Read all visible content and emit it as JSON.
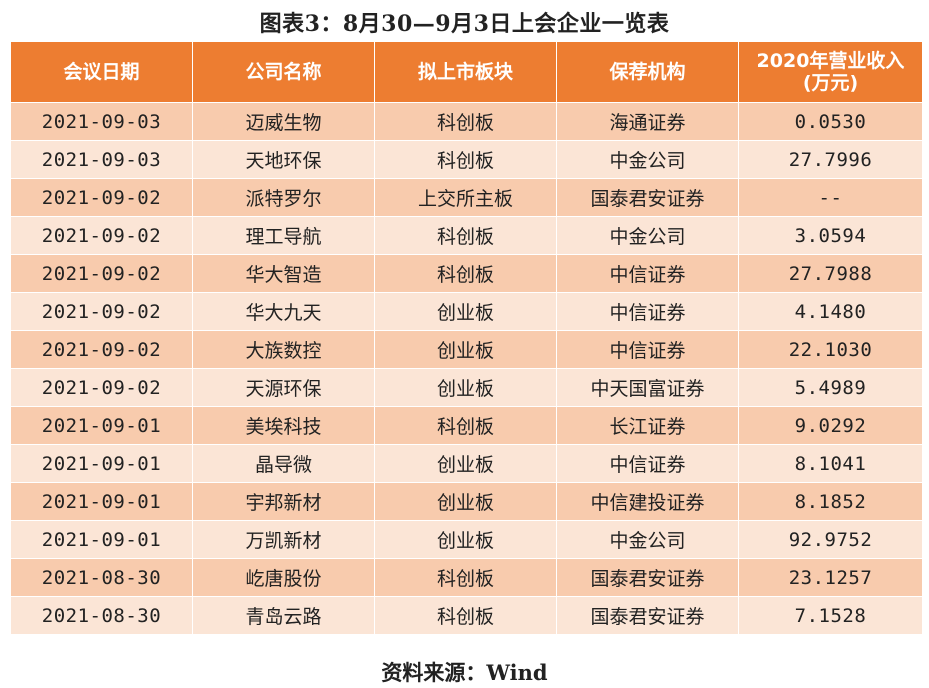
{
  "title": "图表3：8月30—9月3日上会企业一览表",
  "headers": [
    "会议日期",
    "公司名称",
    "拟上市板块",
    "保荐机构",
    "2020年营业收入",
    "(万元)"
  ],
  "rows": [
    {
      "date": "2021-09-03",
      "company": "迈威生物",
      "board": "科创板",
      "sponsor": "海通证券",
      "revenue": "0.0530"
    },
    {
      "date": "2021-09-03",
      "company": "天地环保",
      "board": "科创板",
      "sponsor": "中金公司",
      "revenue": "27.7996"
    },
    {
      "date": "2021-09-02",
      "company": "派特罗尔",
      "board": "上交所主板",
      "sponsor": "国泰君安证券",
      "revenue": "--"
    },
    {
      "date": "2021-09-02",
      "company": "理工导航",
      "board": "科创板",
      "sponsor": "中金公司",
      "revenue": "3.0594"
    },
    {
      "date": "2021-09-02",
      "company": "华大智造",
      "board": "科创板",
      "sponsor": "中信证券",
      "revenue": "27.7988"
    },
    {
      "date": "2021-09-02",
      "company": "华大九天",
      "board": "创业板",
      "sponsor": "中信证券",
      "revenue": "4.1480"
    },
    {
      "date": "2021-09-02",
      "company": "大族数控",
      "board": "创业板",
      "sponsor": "中信证券",
      "revenue": "22.1030"
    },
    {
      "date": "2021-09-02",
      "company": "天源环保",
      "board": "创业板",
      "sponsor": "中天国富证券",
      "revenue": "5.4989"
    },
    {
      "date": "2021-09-01",
      "company": "美埃科技",
      "board": "科创板",
      "sponsor": "长江证券",
      "revenue": "9.0292"
    },
    {
      "date": "2021-09-01",
      "company": "晶导微",
      "board": "创业板",
      "sponsor": "中信证券",
      "revenue": "8.1041"
    },
    {
      "date": "2021-09-01",
      "company": "宇邦新材",
      "board": "创业板",
      "sponsor": "中信建投证券",
      "revenue": "8.1852"
    },
    {
      "date": "2021-09-01",
      "company": "万凯新材",
      "board": "创业板",
      "sponsor": "中金公司",
      "revenue": "92.9752"
    },
    {
      "date": "2021-08-30",
      "company": "屹唐股份",
      "board": "科创板",
      "sponsor": "国泰君安证券",
      "revenue": "23.1257"
    },
    {
      "date": "2021-08-30",
      "company": "青岛云路",
      "board": "科创板",
      "sponsor": "国泰君安证券",
      "revenue": "7.1528"
    }
  ],
  "source": "资料来源：Wind",
  "colors": {
    "header": "#ED7D31",
    "row_odd": "#F8CBAD",
    "row_even": "#FBE5D6"
  }
}
